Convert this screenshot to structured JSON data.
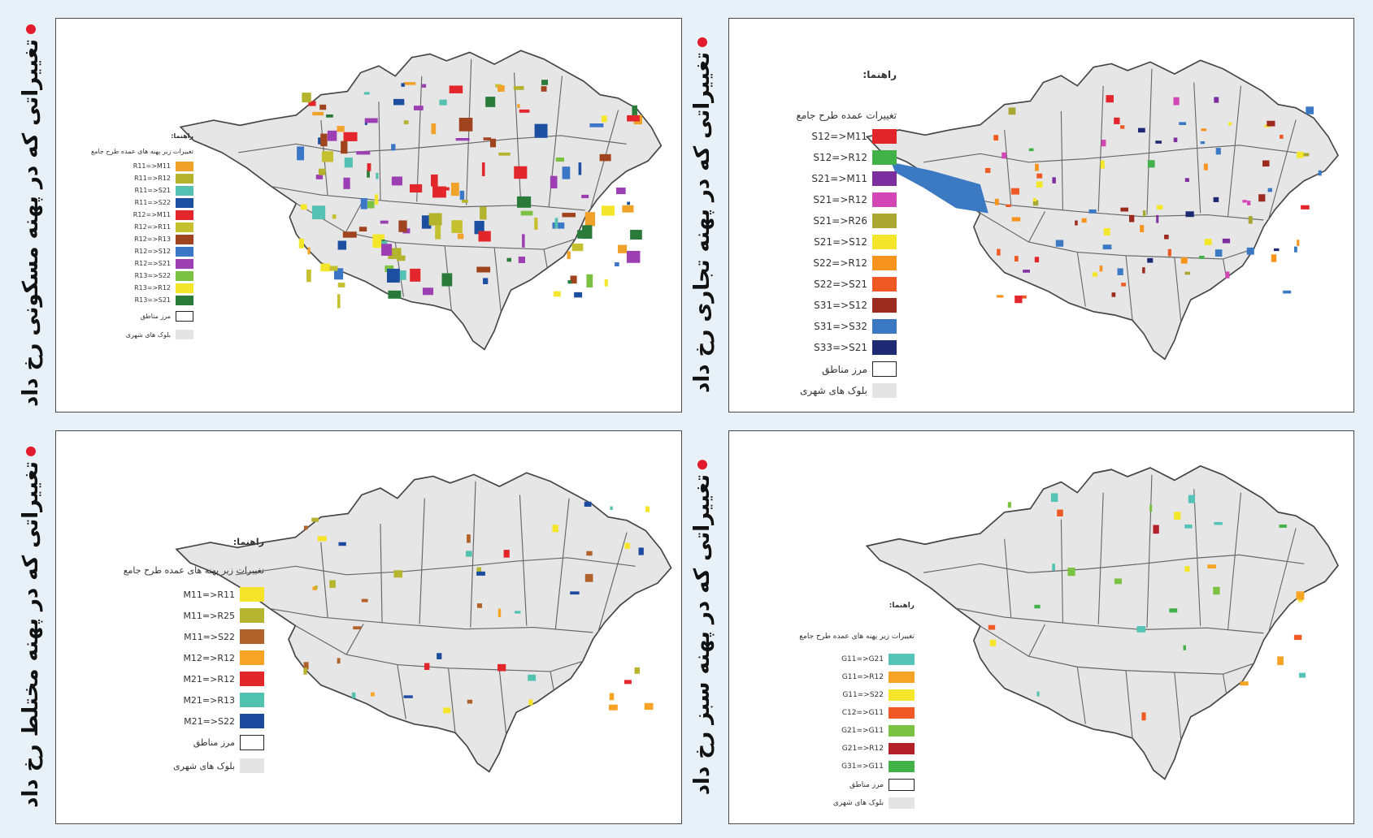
{
  "page": {
    "background": "#e9f1f8",
    "accent_dot": "#e21b2d"
  },
  "panels": {
    "residential": {
      "title": "تغییراتی که در پهنه مسکونی رخ داد",
      "legend_help": "راهنما:",
      "legend_title": "تغییرات زیر پهنه های عمده طرح جامع",
      "items": [
        {
          "label": "R11=>M11",
          "color": "#f0a22a"
        },
        {
          "label": "R11=>R12",
          "color": "#b3b32e"
        },
        {
          "label": "R11=>S21",
          "color": "#55c1b3"
        },
        {
          "label": "R11=>S22",
          "color": "#1c4fa0"
        },
        {
          "label": "R12=>M11",
          "color": "#e3262b"
        },
        {
          "label": "R12=>R11",
          "color": "#c4c02f"
        },
        {
          "label": "R12=>R13",
          "color": "#a0441f"
        },
        {
          "label": "R12=>S12",
          "color": "#3c76c6"
        },
        {
          "label": "R12=>S21",
          "color": "#9b3fb3"
        },
        {
          "label": "R13=>S22",
          "color": "#7cc242"
        },
        {
          "label": "R13=>R12",
          "color": "#f3e62b"
        },
        {
          "label": "R13=>S21",
          "color": "#2a7a3a"
        }
      ],
      "boundary_label": "مرز مناطق",
      "blocks_label": "بلوک های شهری"
    },
    "commercial": {
      "title": "تغییراتی که در پهنه تجاری رخ داد",
      "legend_help": "راهنما:",
      "legend_title": "تغییرات عمده طرح جامع",
      "items": [
        {
          "label": "S12=>M11",
          "color": "#e3262b"
        },
        {
          "label": "S12=>R12",
          "color": "#43b149"
        },
        {
          "label": "S21=>M11",
          "color": "#7d2fa0"
        },
        {
          "label": "S21=>R12",
          "color": "#d346b6"
        },
        {
          "label": "S21=>R26",
          "color": "#a9a632"
        },
        {
          "label": "S21=>S12",
          "color": "#f3e62b"
        },
        {
          "label": "S22=>R12",
          "color": "#f7941e"
        },
        {
          "label": "S22=>S21",
          "color": "#ef5a24"
        },
        {
          "label": "S31=>S12",
          "color": "#9c2b1e"
        },
        {
          "label": "S31=>S32",
          "color": "#3b79c3"
        },
        {
          "label": "S33=>S21",
          "color": "#1d2a73"
        }
      ],
      "boundary_label": "مرز مناطق",
      "blocks_label": "بلوک های شهری"
    },
    "mixed": {
      "title": "تغییراتی که در پهنه مختلط رخ داد",
      "legend_help": "راهنما:",
      "legend_title": "تغییرات زیر پهنه های عمده طرح جامع",
      "items": [
        {
          "label": "M11=>R11",
          "color": "#f5e42a"
        },
        {
          "label": "M11=>R25",
          "color": "#b6b52f"
        },
        {
          "label": "M11=>S22",
          "color": "#b0622a"
        },
        {
          "label": "M12=>R12",
          "color": "#f7a324"
        },
        {
          "label": "M21=>R12",
          "color": "#e3262b"
        },
        {
          "label": "M21=>R13",
          "color": "#52c2b0"
        },
        {
          "label": "M21=>S22",
          "color": "#1c4a9f"
        }
      ],
      "boundary_label": "مرز مناطق",
      "blocks_label": "بلوک های شهری"
    },
    "green": {
      "title": "تغییراتی که در پهنه سبز رخ داد",
      "legend_help": "راهنما:",
      "legend_title": "تغییرات زیر پهنه های عمده طرح جامع",
      "items": [
        {
          "label": "G11=>G21",
          "color": "#55c3b5"
        },
        {
          "label": "G11=>R12",
          "color": "#f7a324"
        },
        {
          "label": "G11=>S22",
          "color": "#f3e62b"
        },
        {
          "label": "C12=>G11",
          "color": "#ef5a24"
        },
        {
          "label": "G21=>G11",
          "color": "#7cc242"
        },
        {
          "label": "G21=>R12",
          "color": "#b3202a"
        },
        {
          "label": "G31=>G11",
          "color": "#43b149"
        }
      ],
      "boundary_label": "مرز مناطق",
      "blocks_label": "بلوک های شهری"
    }
  }
}
